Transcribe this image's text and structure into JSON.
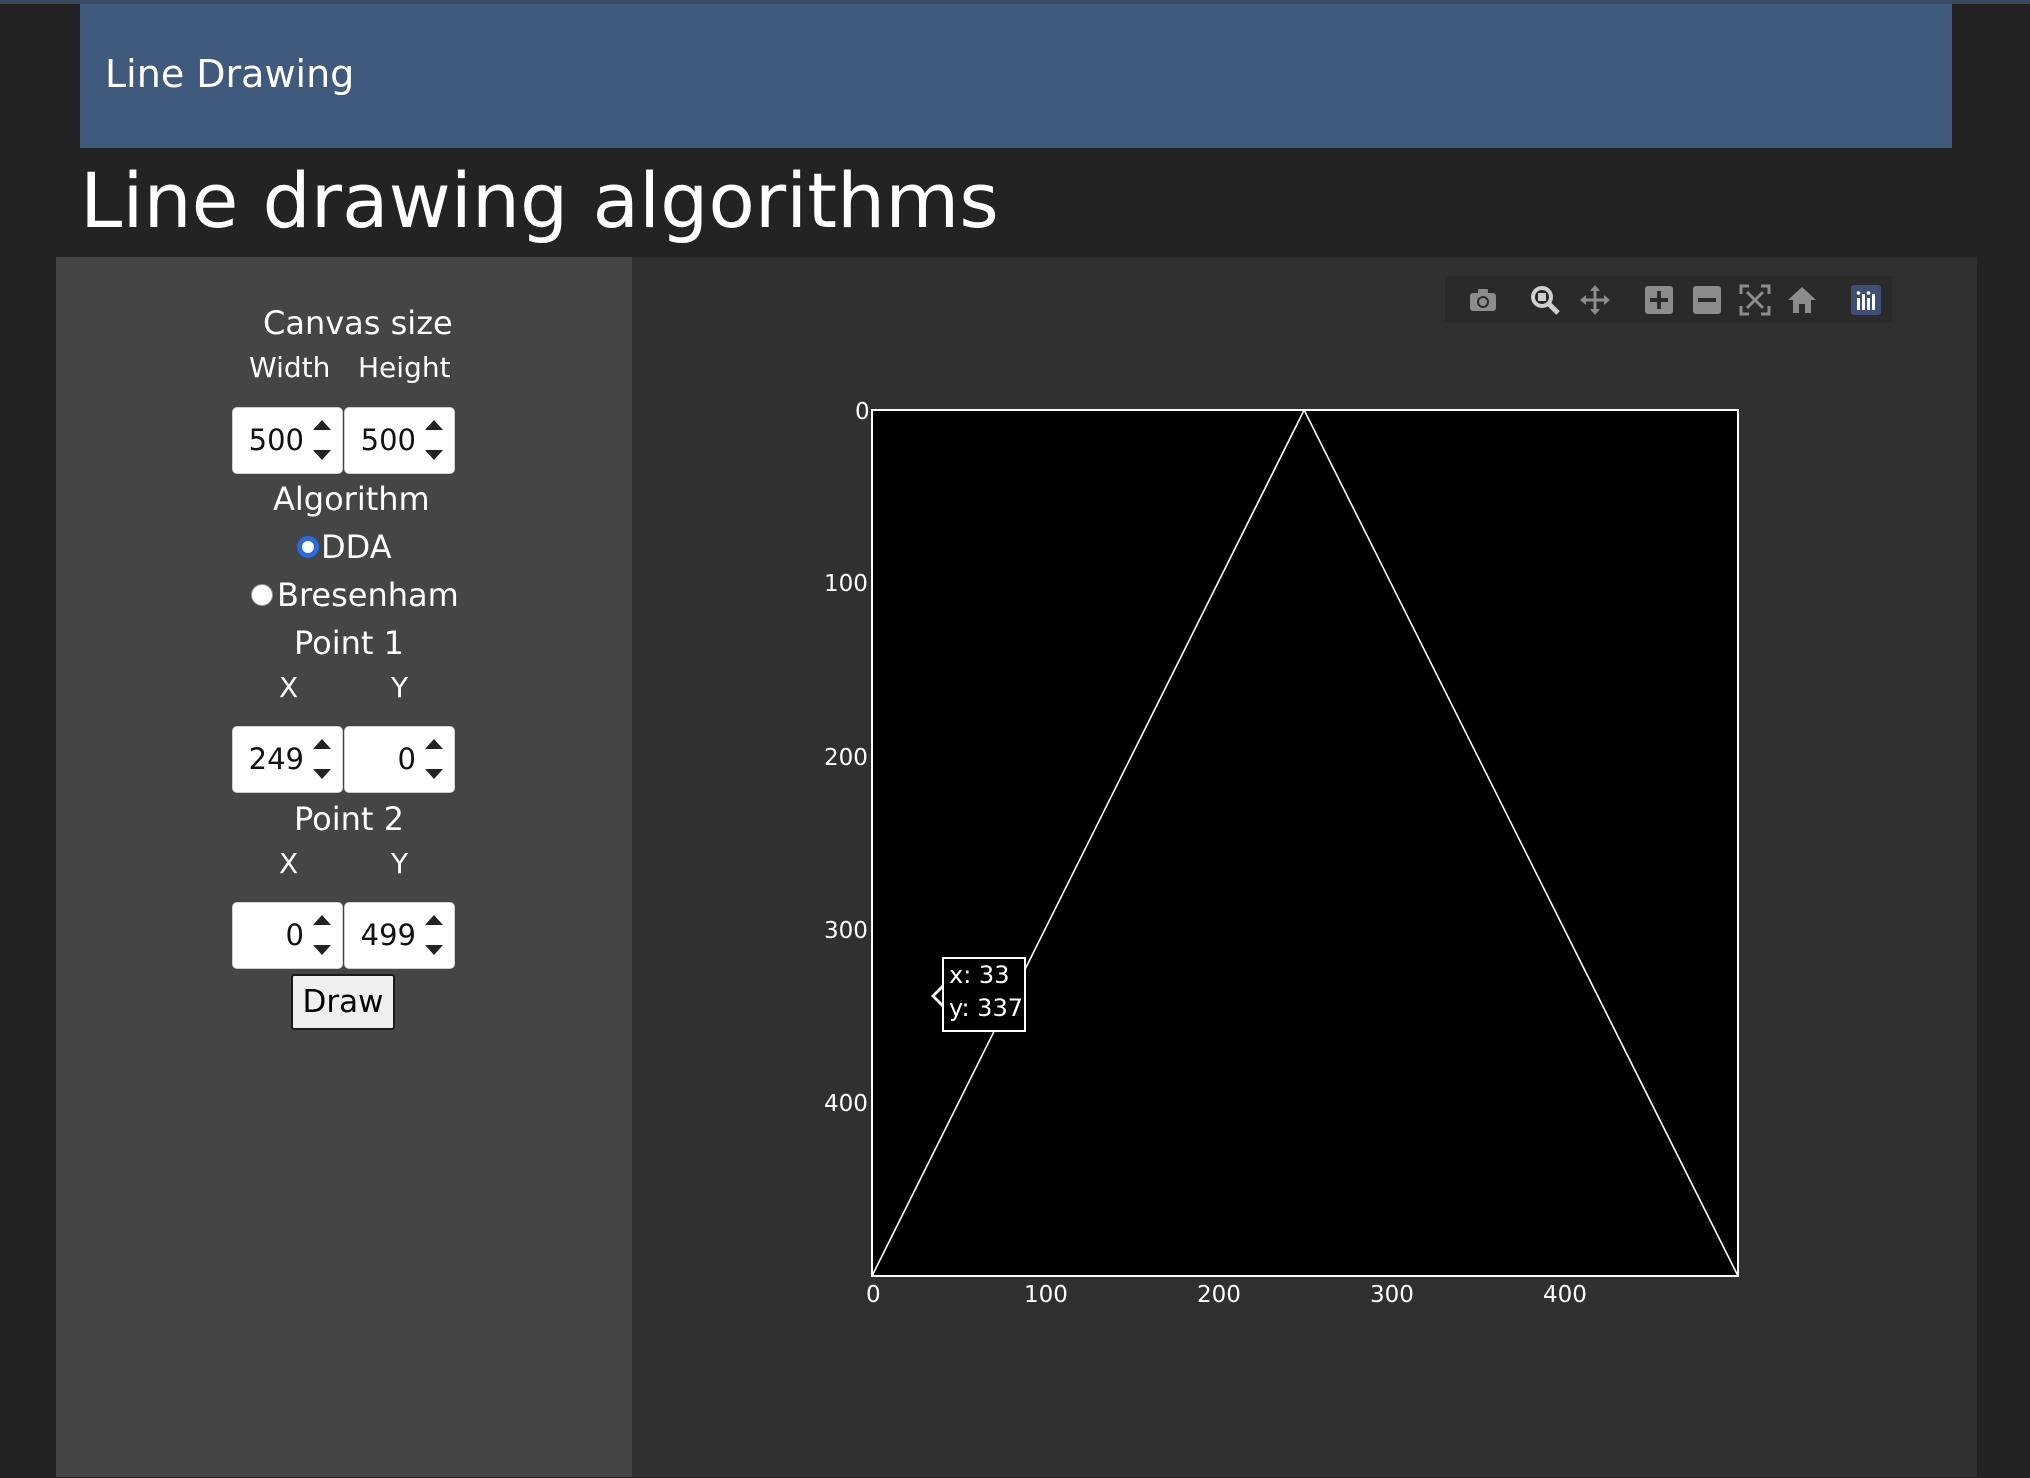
{
  "navbar": {
    "brand": "Line Drawing"
  },
  "page": {
    "title": "Line drawing algorithms"
  },
  "controls": {
    "canvas_size_label": "Canvas size",
    "width_label": "Width",
    "height_label": "Height",
    "width_value": "500",
    "height_value": "500",
    "algorithm_label": "Algorithm",
    "algorithms": [
      {
        "label": "DDA",
        "selected": true
      },
      {
        "label": "Bresenham",
        "selected": false
      }
    ],
    "point1_label": "Point 1",
    "point1_x_label": "X",
    "point1_y_label": "Y",
    "point1_x": "249",
    "point1_y": "0",
    "point2_label": "Point 2",
    "point2_x_label": "X",
    "point2_y_label": "Y",
    "point2_x": "0",
    "point2_y": "499",
    "draw_label": "Draw"
  },
  "modebar": {
    "icons": [
      "camera-icon",
      "zoom-icon",
      "pan-icon",
      "zoom-in-icon",
      "zoom-out-icon",
      "autoscale-icon",
      "reset-axes-icon",
      "plotly-logo-icon"
    ]
  },
  "chart_data": {
    "type": "line",
    "xlim": [
      0,
      499
    ],
    "ylim": [
      0,
      499
    ],
    "y_reversed": true,
    "background": "#000000",
    "line_color": "#ffffff",
    "x_ticks": [
      "0",
      "100",
      "200",
      "300",
      "400"
    ],
    "y_ticks": [
      "0",
      "100",
      "200",
      "300",
      "400"
    ],
    "segments": [
      {
        "x": [
          249,
          0
        ],
        "y": [
          0,
          499
        ]
      },
      {
        "x": [
          249,
          499
        ],
        "y": [
          0,
          499
        ]
      },
      {
        "x": [
          0,
          0
        ],
        "y": [
          250,
          499
        ]
      }
    ],
    "hover": {
      "x_text": "x: 33",
      "y_text": "y: 337"
    }
  }
}
